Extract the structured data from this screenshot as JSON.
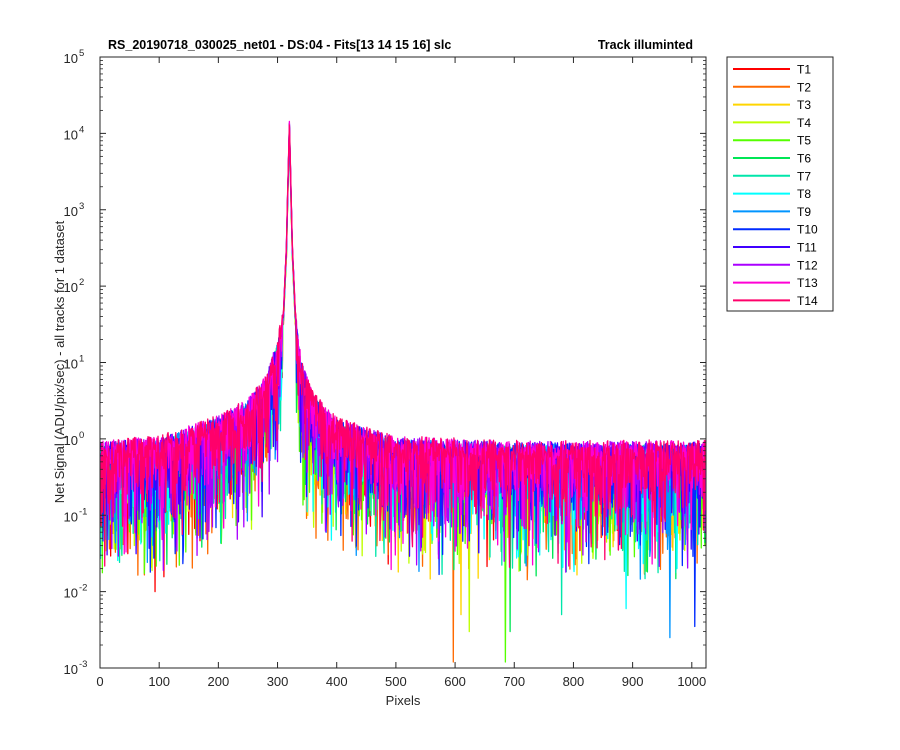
{
  "chart_data": {
    "type": "line",
    "title": "RS_20190718_030025_net01 - DS:04 - Fits[13  14  15  16]   slc",
    "title_right": "Track illuminted",
    "xlabel": "Pixels",
    "ylabel": "Net Signal (ADU/pix/sec) - all tracks for 1 dataset",
    "xlim": [
      0,
      1024
    ],
    "ylim": [
      0.001,
      100000
    ],
    "yscale": "log",
    "grid": false,
    "legend_position": "outside-right",
    "xticks": [
      0,
      100,
      200,
      300,
      400,
      500,
      600,
      700,
      800,
      900,
      1000
    ],
    "xtick_labels": [
      "0",
      "100",
      "200",
      "300",
      "400",
      "500",
      "600",
      "700",
      "800",
      "900",
      "1000"
    ],
    "yticks": [
      0.001,
      0.01,
      0.1,
      1,
      10,
      100,
      1000,
      10000,
      100000
    ],
    "ytick_mantissa": [
      "10",
      "10",
      "10",
      "10",
      "10",
      "10",
      "10",
      "10",
      "10"
    ],
    "ytick_exponents": [
      "-3",
      "-2",
      "-1",
      "0",
      "1",
      "2",
      "3",
      "4",
      "5"
    ],
    "peak_x": 320,
    "peak_y": 12000,
    "profile": {
      "x": [
        0,
        100,
        200,
        250,
        280,
        300,
        310,
        315,
        320,
        325,
        330,
        340,
        360,
        400,
        500,
        700,
        1024
      ],
      "y": [
        0.7,
        0.8,
        1.5,
        2.5,
        5,
        15,
        40,
        300,
        12000,
        300,
        40,
        8,
        3,
        1.4,
        0.8,
        0.7,
        0.7
      ]
    },
    "dips": [
      {
        "x": 93,
        "y": 0.01
      },
      {
        "x": 597,
        "y": 0.0012
      },
      {
        "x": 610,
        "y": 0.005
      },
      {
        "x": 624,
        "y": 0.003
      },
      {
        "x": 685,
        "y": 0.0012
      },
      {
        "x": 693,
        "y": 0.003
      },
      {
        "x": 780,
        "y": 0.005
      },
      {
        "x": 889,
        "y": 0.006
      },
      {
        "x": 963,
        "y": 0.0025
      },
      {
        "x": 1005,
        "y": 0.0035
      }
    ],
    "series": [
      {
        "name": "T1",
        "color": "#ff0000"
      },
      {
        "name": "T2",
        "color": "#ff6a00"
      },
      {
        "name": "T3",
        "color": "#ffd500"
      },
      {
        "name": "T4",
        "color": "#bfff00"
      },
      {
        "name": "T5",
        "color": "#55ff00"
      },
      {
        "name": "T6",
        "color": "#00e655"
      },
      {
        "name": "T7",
        "color": "#00e6aa"
      },
      {
        "name": "T8",
        "color": "#00ffff"
      },
      {
        "name": "T9",
        "color": "#0095ff"
      },
      {
        "name": "T10",
        "color": "#002bff"
      },
      {
        "name": "T11",
        "color": "#4000ff"
      },
      {
        "name": "T12",
        "color": "#aa00ff"
      },
      {
        "name": "T13",
        "color": "#ff00d5"
      },
      {
        "name": "T14",
        "color": "#ff006a"
      }
    ]
  }
}
